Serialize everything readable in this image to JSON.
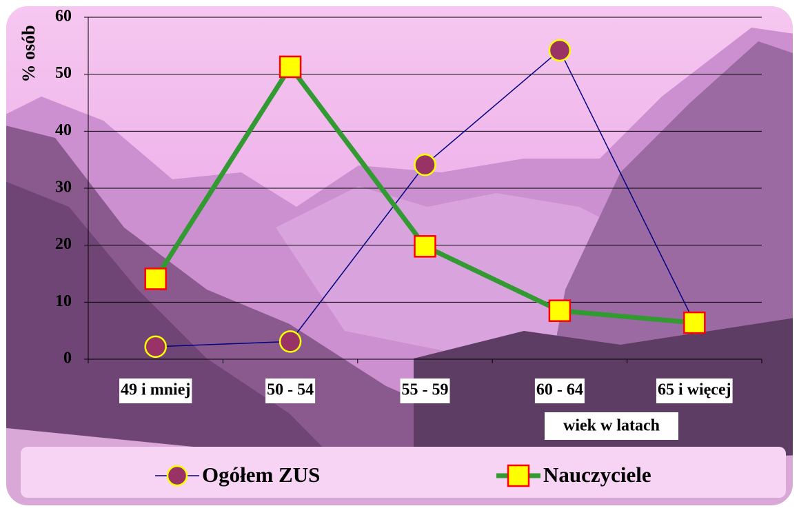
{
  "chart_data": {
    "type": "line",
    "y_label": "% osób",
    "x_label": "wiek w latach",
    "categories": [
      "49 i mniej",
      "50 - 54",
      "55 - 59",
      "60 - 64",
      "65  i więcej"
    ],
    "series": [
      {
        "name": "Ogółem ZUS",
        "color": "#000080",
        "marker": "circle",
        "marker_fill": "#993366",
        "marker_stroke": "#ffff00",
        "values": [
          2.2,
          3.1,
          34.1,
          54.2,
          6.4
        ]
      },
      {
        "name": "Nauczyciele",
        "color": "#339933",
        "marker": "square",
        "marker_fill": "#ffff00",
        "marker_stroke": "#ff0000",
        "values": [
          14.1,
          51.3,
          19.8,
          8.5,
          6.4
        ]
      }
    ],
    "ylim": [
      0,
      60
    ],
    "yticks": [
      0,
      10,
      20,
      30,
      40,
      50,
      60
    ],
    "grid": true
  }
}
